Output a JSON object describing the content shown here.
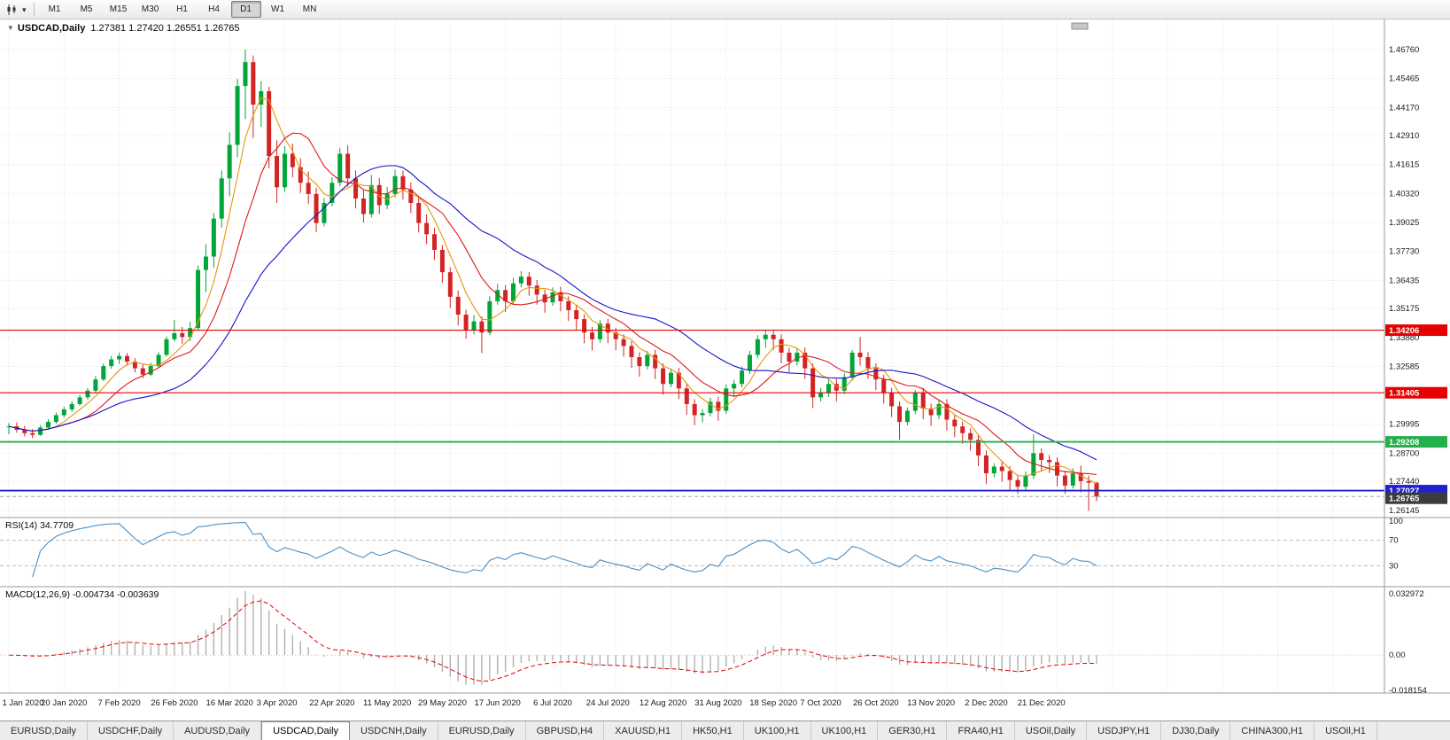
{
  "icons": {
    "collapse": "▼",
    "caret": "▾"
  },
  "toolbar": {
    "timeframes": [
      "M1",
      "M5",
      "M15",
      "M30",
      "H1",
      "H4",
      "D1",
      "W1",
      "MN"
    ],
    "active_timeframe": "D1"
  },
  "chart_header": {
    "symbol_period": "USDCAD,Daily",
    "ohlc": "1.27381 1.27420 1.26551 1.26765"
  },
  "indicators": {
    "rsi_label": "RSI(14) 34.7709",
    "macd_label": "MACD(12,26,9) -0.004734 -0.003639"
  },
  "colors": {
    "bull": "#00a638",
    "bear": "#d32424",
    "ma_fast": "#e8960a",
    "ma_mid": "#e01818",
    "ma_slow": "#1414cc",
    "rsi_line": "#4a90c8",
    "macd_hist": "#b0b0b0",
    "macd_signal": "#e00000",
    "grid": "#e2e2e2",
    "frame": "#9a9a9a",
    "bid_label_bg": "#3c3c3c"
  },
  "chart_data": {
    "type": "candlestick",
    "symbol": "USDCAD",
    "timeframe": "Daily",
    "title": "USDCAD,Daily",
    "current": {
      "open": 1.27381,
      "high": 1.2742,
      "low": 1.26551,
      "close": 1.26765
    },
    "bid_label": "1.26765",
    "y_range": [
      1.259,
      1.4795
    ],
    "y_ticks": [
      "1.46760",
      "1.45465",
      "1.44170",
      "1.42910",
      "1.41615",
      "1.40320",
      "1.39025",
      "1.37730",
      "1.36435",
      "1.35175",
      "1.33880",
      "1.32585",
      "1.31290",
      "1.29995",
      "1.28700",
      "1.27440",
      "1.26145"
    ],
    "x_labels": [
      "1 Jan 2020",
      "20 Jan 2020",
      "7 Feb 2020",
      "26 Feb 2020",
      "16 Mar 2020",
      "3 Apr 2020",
      "22 Apr 2020",
      "11 May 2020",
      "29 May 2020",
      "17 Jun 2020",
      "6 Jul 2020",
      "24 Jul 2020",
      "12 Aug 2020",
      "31 Aug 2020",
      "18 Sep 2020",
      "7 Oct 2020",
      "26 Oct 2020",
      "13 Nov 2020",
      "2 Dec 2020",
      "21 Dec 2020"
    ],
    "horizontal_lines": [
      {
        "price": 1.34206,
        "label": "1.34206",
        "color": "#e80000",
        "width": 1.2
      },
      {
        "price": 1.31405,
        "label": "1.31405",
        "color": "#e80000",
        "width": 1.2
      },
      {
        "price": 1.29208,
        "label": "1.29208",
        "color": "#22b14c",
        "width": 1.8
      },
      {
        "price": 1.27027,
        "label": "1.27027",
        "color": "#2020d0",
        "width": 1.8
      }
    ],
    "moving_averages": [
      {
        "name": "fast",
        "period": 5,
        "color": "#e8960a"
      },
      {
        "name": "medium",
        "period": 10,
        "color": "#e01818"
      },
      {
        "name": "slow",
        "period": 22,
        "color": "#1414cc"
      }
    ],
    "rsi": {
      "period": 14,
      "current": 34.7709,
      "levels": [
        70,
        30
      ],
      "scale_labels": [
        "100",
        "70",
        "30"
      ]
    },
    "macd": {
      "fast": 12,
      "slow": 26,
      "signal": 9,
      "current_macd": -0.004734,
      "current_signal": -0.003639,
      "scale_labels": [
        "0.032972",
        "0.00",
        "-0.018154"
      ],
      "scale_range": [
        0.033,
        -0.0182
      ]
    },
    "candles_ohlc": [
      [
        1.2988,
        1.3005,
        1.2955,
        1.299
      ],
      [
        1.299,
        1.3008,
        1.2962,
        1.2975
      ],
      [
        1.2975,
        1.2992,
        1.2945,
        1.296
      ],
      [
        1.296,
        1.2978,
        1.2938,
        1.2952
      ],
      [
        1.2952,
        1.2995,
        1.2948,
        1.2985
      ],
      [
        1.2985,
        1.3022,
        1.2975,
        1.301
      ],
      [
        1.301,
        1.3052,
        1.3002,
        1.304
      ],
      [
        1.304,
        1.3078,
        1.303,
        1.3066
      ],
      [
        1.3066,
        1.3102,
        1.3055,
        1.309
      ],
      [
        1.309,
        1.3132,
        1.3082,
        1.312
      ],
      [
        1.312,
        1.3162,
        1.311,
        1.315
      ],
      [
        1.315,
        1.3215,
        1.3142,
        1.32
      ],
      [
        1.32,
        1.3272,
        1.3192,
        1.326
      ],
      [
        1.326,
        1.3305,
        1.3248,
        1.329
      ],
      [
        1.329,
        1.332,
        1.327,
        1.3305
      ],
      [
        1.3305,
        1.3318,
        1.3262,
        1.328
      ],
      [
        1.328,
        1.3295,
        1.3232,
        1.325
      ],
      [
        1.325,
        1.3268,
        1.3205,
        1.3222
      ],
      [
        1.3222,
        1.3275,
        1.3215,
        1.326
      ],
      [
        1.326,
        1.3322,
        1.3252,
        1.331
      ],
      [
        1.331,
        1.3392,
        1.3302,
        1.338
      ],
      [
        1.338,
        1.3465,
        1.337,
        1.3407
      ],
      [
        1.3407,
        1.3435,
        1.336,
        1.339
      ],
      [
        1.339,
        1.3458,
        1.3372,
        1.343
      ],
      [
        1.343,
        1.371,
        1.342,
        1.369
      ],
      [
        1.369,
        1.3805,
        1.359,
        1.375
      ],
      [
        1.375,
        1.3945,
        1.37,
        1.392
      ],
      [
        1.392,
        1.4135,
        1.388,
        1.41
      ],
      [
        1.41,
        1.4305,
        1.402,
        1.425
      ],
      [
        1.425,
        1.4545,
        1.4195,
        1.4513
      ],
      [
        1.4513,
        1.4676,
        1.4365,
        1.462
      ],
      [
        1.462,
        1.465,
        1.428,
        1.443
      ],
      [
        1.443,
        1.4535,
        1.433,
        1.449
      ],
      [
        1.449,
        1.451,
        1.4145,
        1.42
      ],
      [
        1.42,
        1.427,
        1.399,
        1.406
      ],
      [
        1.406,
        1.4245,
        1.404,
        1.421
      ],
      [
        1.421,
        1.4255,
        1.4105,
        1.415
      ],
      [
        1.415,
        1.419,
        1.4035,
        1.408
      ],
      [
        1.408,
        1.413,
        1.3985,
        1.403
      ],
      [
        1.403,
        1.4058,
        1.386,
        1.39
      ],
      [
        1.39,
        1.4012,
        1.3885,
        1.399
      ],
      [
        1.399,
        1.4105,
        1.3975,
        1.408
      ],
      [
        1.408,
        1.4235,
        1.4065,
        1.421
      ],
      [
        1.421,
        1.4248,
        1.4062,
        1.41
      ],
      [
        1.41,
        1.4135,
        1.3965,
        1.401
      ],
      [
        1.401,
        1.4048,
        1.3902,
        1.394
      ],
      [
        1.394,
        1.4115,
        1.3925,
        1.407
      ],
      [
        1.407,
        1.4102,
        1.394,
        1.398
      ],
      [
        1.398,
        1.4062,
        1.3962,
        1.403
      ],
      [
        1.403,
        1.4138,
        1.4015,
        1.411
      ],
      [
        1.411,
        1.4135,
        1.4005,
        1.405
      ],
      [
        1.405,
        1.4082,
        1.3945,
        1.399
      ],
      [
        1.399,
        1.4015,
        1.3858,
        1.39
      ],
      [
        1.39,
        1.3938,
        1.3805,
        1.385
      ],
      [
        1.385,
        1.3878,
        1.3735,
        1.378
      ],
      [
        1.378,
        1.3802,
        1.3632,
        1.368
      ],
      [
        1.368,
        1.3702,
        1.352,
        1.357
      ],
      [
        1.357,
        1.3598,
        1.3442,
        1.349
      ],
      [
        1.349,
        1.3512,
        1.3382,
        1.342
      ],
      [
        1.342,
        1.3488,
        1.3402,
        1.346
      ],
      [
        1.346,
        1.3482,
        1.3318,
        1.341
      ],
      [
        1.341,
        1.3572,
        1.3398,
        1.355
      ],
      [
        1.355,
        1.3628,
        1.3535,
        1.36
      ],
      [
        1.36,
        1.3622,
        1.3502,
        1.355
      ],
      [
        1.355,
        1.3655,
        1.3538,
        1.363
      ],
      [
        1.363,
        1.3685,
        1.3612,
        1.366
      ],
      [
        1.366,
        1.368,
        1.3575,
        1.362
      ],
      [
        1.362,
        1.3645,
        1.3535,
        1.358
      ],
      [
        1.358,
        1.3602,
        1.3498,
        1.3545
      ],
      [
        1.3545,
        1.3612,
        1.353,
        1.359
      ],
      [
        1.359,
        1.3615,
        1.3505,
        1.355
      ],
      [
        1.355,
        1.3572,
        1.3462,
        1.351
      ],
      [
        1.351,
        1.3532,
        1.3422,
        1.347
      ],
      [
        1.347,
        1.3492,
        1.3362,
        1.341
      ],
      [
        1.341,
        1.3435,
        1.333,
        1.338
      ],
      [
        1.338,
        1.3465,
        1.3365,
        1.345
      ],
      [
        1.345,
        1.3472,
        1.3362,
        1.341
      ],
      [
        1.341,
        1.3432,
        1.333,
        1.338
      ],
      [
        1.338,
        1.3402,
        1.3302,
        1.335
      ],
      [
        1.335,
        1.3372,
        1.3252,
        1.33
      ],
      [
        1.33,
        1.3322,
        1.3212,
        1.326
      ],
      [
        1.326,
        1.3328,
        1.3245,
        1.331
      ],
      [
        1.331,
        1.3332,
        1.3202,
        1.325
      ],
      [
        1.325,
        1.3272,
        1.3132,
        1.318
      ],
      [
        1.318,
        1.3248,
        1.3165,
        1.323
      ],
      [
        1.323,
        1.3252,
        1.3112,
        1.316
      ],
      [
        1.316,
        1.3182,
        1.3042,
        1.309
      ],
      [
        1.309,
        1.3112,
        1.2995,
        1.304
      ],
      [
        1.304,
        1.3068,
        1.3008,
        1.305
      ],
      [
        1.305,
        1.3118,
        1.3035,
        1.31
      ],
      [
        1.31,
        1.3122,
        1.3015,
        1.306
      ],
      [
        1.306,
        1.3178,
        1.3045,
        1.316
      ],
      [
        1.316,
        1.3198,
        1.3122,
        1.318
      ],
      [
        1.318,
        1.3258,
        1.3165,
        1.324
      ],
      [
        1.324,
        1.3328,
        1.3225,
        1.331
      ],
      [
        1.331,
        1.3398,
        1.3295,
        1.338
      ],
      [
        1.338,
        1.3421,
        1.3342,
        1.34
      ],
      [
        1.34,
        1.3418,
        1.3332,
        1.338
      ],
      [
        1.338,
        1.3402,
        1.3272,
        1.332
      ],
      [
        1.332,
        1.3342,
        1.3232,
        1.328
      ],
      [
        1.328,
        1.3338,
        1.3262,
        1.332
      ],
      [
        1.332,
        1.3342,
        1.3202,
        1.325
      ],
      [
        1.325,
        1.3272,
        1.3072,
        1.312
      ],
      [
        1.312,
        1.3162,
        1.3102,
        1.314
      ],
      [
        1.314,
        1.3198,
        1.3122,
        1.318
      ],
      [
        1.318,
        1.3202,
        1.3102,
        1.315
      ],
      [
        1.315,
        1.3228,
        1.3135,
        1.321
      ],
      [
        1.321,
        1.3332,
        1.3195,
        1.332
      ],
      [
        1.332,
        1.339,
        1.3262,
        1.33
      ],
      [
        1.33,
        1.3322,
        1.3202,
        1.325
      ],
      [
        1.325,
        1.3272,
        1.3152,
        1.32
      ],
      [
        1.32,
        1.3222,
        1.3092,
        1.314
      ],
      [
        1.314,
        1.3162,
        1.3032,
        1.308
      ],
      [
        1.308,
        1.3102,
        1.293,
        1.301
      ],
      [
        1.301,
        1.3075,
        1.2995,
        1.306
      ],
      [
        1.306,
        1.3152,
        1.3045,
        1.314
      ],
      [
        1.314,
        1.3162,
        1.3022,
        1.307
      ],
      [
        1.307,
        1.3092,
        1.2992,
        1.304
      ],
      [
        1.304,
        1.3105,
        1.3022,
        1.309
      ],
      [
        1.309,
        1.3112,
        1.2972,
        1.302
      ],
      [
        1.302,
        1.3042,
        1.2942,
        1.299
      ],
      [
        1.299,
        1.3012,
        1.2912,
        1.296
      ],
      [
        1.296,
        1.2982,
        1.2882,
        1.293
      ],
      [
        1.293,
        1.2952,
        1.2812,
        1.286
      ],
      [
        1.286,
        1.2882,
        1.2732,
        1.278
      ],
      [
        1.278,
        1.2825,
        1.2762,
        1.281
      ],
      [
        1.281,
        1.2832,
        1.2742,
        1.279
      ],
      [
        1.279,
        1.2812,
        1.2702,
        1.275
      ],
      [
        1.275,
        1.2772,
        1.2688,
        1.272
      ],
      [
        1.272,
        1.2788,
        1.2705,
        1.277
      ],
      [
        1.277,
        1.2955,
        1.2755,
        1.287
      ],
      [
        1.287,
        1.2892,
        1.2792,
        1.284
      ],
      [
        1.284,
        1.2862,
        1.2782,
        1.283
      ],
      [
        1.283,
        1.2852,
        1.2722,
        1.277
      ],
      [
        1.277,
        1.2792,
        1.2688,
        1.2725
      ],
      [
        1.2725,
        1.2802,
        1.2712,
        1.278
      ],
      [
        1.278,
        1.2815,
        1.2695,
        1.2745
      ],
      [
        1.2745,
        1.277,
        1.2612,
        1.2738
      ],
      [
        1.27381,
        1.2742,
        1.26551,
        1.26765
      ]
    ]
  },
  "tabs": {
    "active_index": 3,
    "items": [
      "EURUSD,Daily",
      "USDCHF,Daily",
      "AUDUSD,Daily",
      "USDCAD,Daily",
      "USDCNH,Daily",
      "EURUSD,Daily",
      "GBPUSD,H4",
      "XAUUSD,H1",
      "HK50,H1",
      "UK100,H1",
      "UK100,H1",
      "GER30,H1",
      "FRA40,H1",
      "USOil,Daily",
      "USDJPY,H1",
      "DJ30,Daily",
      "CHINA300,H1",
      "USOil,H1"
    ]
  }
}
